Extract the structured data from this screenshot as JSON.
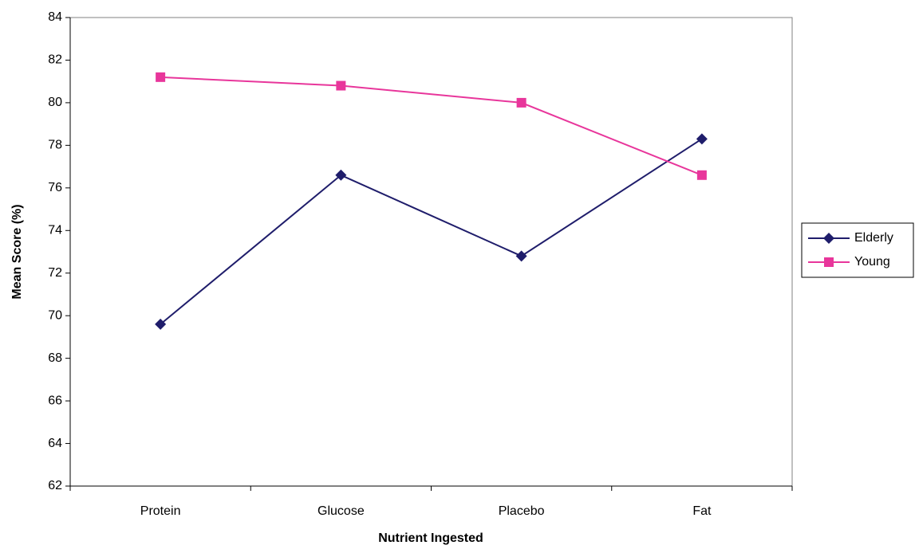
{
  "chart_data": {
    "type": "line",
    "x_label": "Nutrient Ingested",
    "y_label": "Mean Score (%)",
    "categories": [
      "Protein",
      "Glucose",
      "Placebo",
      "Fat"
    ],
    "series": [
      {
        "name": "Elderly",
        "color": "#1f1d6b",
        "marker": "diamond",
        "values": [
          69.6,
          76.6,
          72.8,
          78.3
        ]
      },
      {
        "name": "Young",
        "color": "#e8369b",
        "marker": "square",
        "values": [
          81.2,
          80.8,
          80.0,
          76.6
        ]
      }
    ],
    "ylim": [
      62,
      84
    ],
    "yticks": [
      62,
      64,
      66,
      68,
      70,
      72,
      74,
      76,
      78,
      80,
      82,
      84
    ],
    "grid": false,
    "legend": "right"
  }
}
